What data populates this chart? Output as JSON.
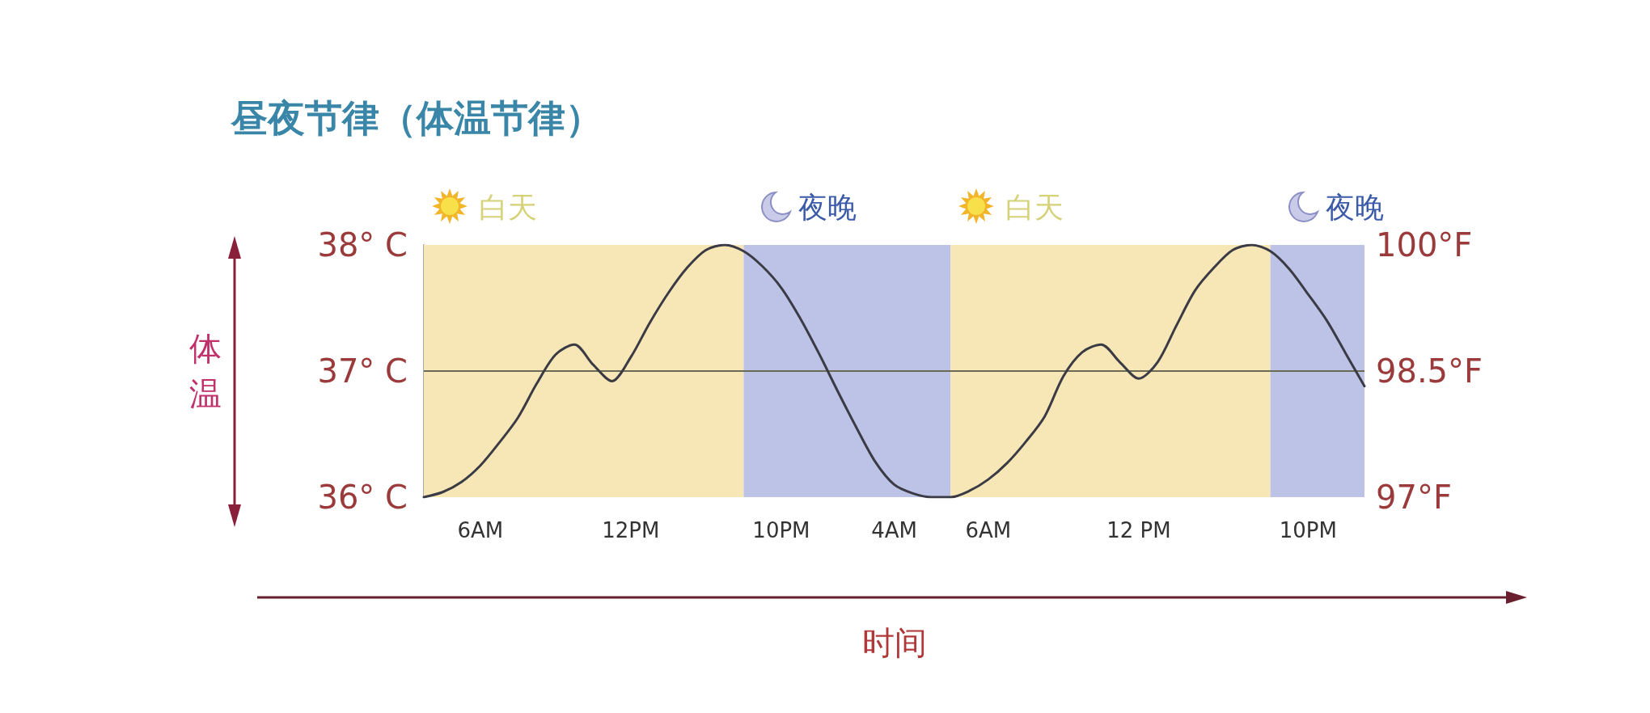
{
  "chart_data": {
    "type": "line",
    "title": "昼夜节律（体温节律）",
    "xlabel": "时间",
    "ylabel": "体温",
    "categories": [
      null,
      null,
      null,
      "6AM",
      null,
      null,
      null,
      null,
      null,
      null,
      null,
      "12PM",
      null,
      null,
      null,
      null,
      null,
      null,
      null,
      "10PM",
      null,
      null,
      null,
      null,
      null,
      "4AM",
      null,
      null,
      null,
      null,
      "6AM",
      null,
      null,
      null,
      null,
      null,
      null,
      null,
      "12 PM",
      null,
      null,
      null,
      null,
      null,
      null,
      null,
      null,
      "10PM",
      null,
      null,
      null
    ],
    "ylim": [
      36,
      38
    ],
    "yticks": [
      {
        "value": 36,
        "label": "36° C"
      },
      {
        "value": 37,
        "label": "37° C"
      },
      {
        "value": 38,
        "label": "38° C"
      }
    ],
    "y2lim": [
      97,
      100
    ],
    "y2ticks": [
      {
        "value": 97,
        "label": "97°F"
      },
      {
        "value": 98.5,
        "label": "98.5°F"
      },
      {
        "value": 100,
        "label": "100°F"
      }
    ],
    "grid": false,
    "marker": "none",
    "line_style": "solid",
    "ref_lines": [
      {
        "axis": "y",
        "value": 37,
        "color": "#6b6b55"
      }
    ],
    "annotations": [
      "白天",
      "夜晚",
      "白天",
      "夜晚"
    ],
    "series": [
      {
        "color": "#3b3b45",
        "values": [
          36.0,
          36.04,
          36.12,
          36.25,
          36.43,
          36.63,
          36.9,
          37.13,
          37.21,
          37.05,
          36.92,
          37.11,
          37.38,
          37.62,
          37.82,
          37.96,
          38.0,
          37.95,
          37.83,
          37.66,
          37.42,
          37.14,
          36.84,
          36.55,
          36.28,
          36.1,
          36.03,
          36.0,
          36.0,
          36.05,
          36.14,
          36.27,
          36.44,
          36.64,
          36.96,
          37.15,
          37.21,
          37.07,
          36.94,
          37.07,
          37.36,
          37.64,
          37.82,
          37.96,
          38.0,
          37.95,
          37.81,
          37.61,
          37.4,
          37.14,
          36.88
        ]
      }
    ]
  }
}
